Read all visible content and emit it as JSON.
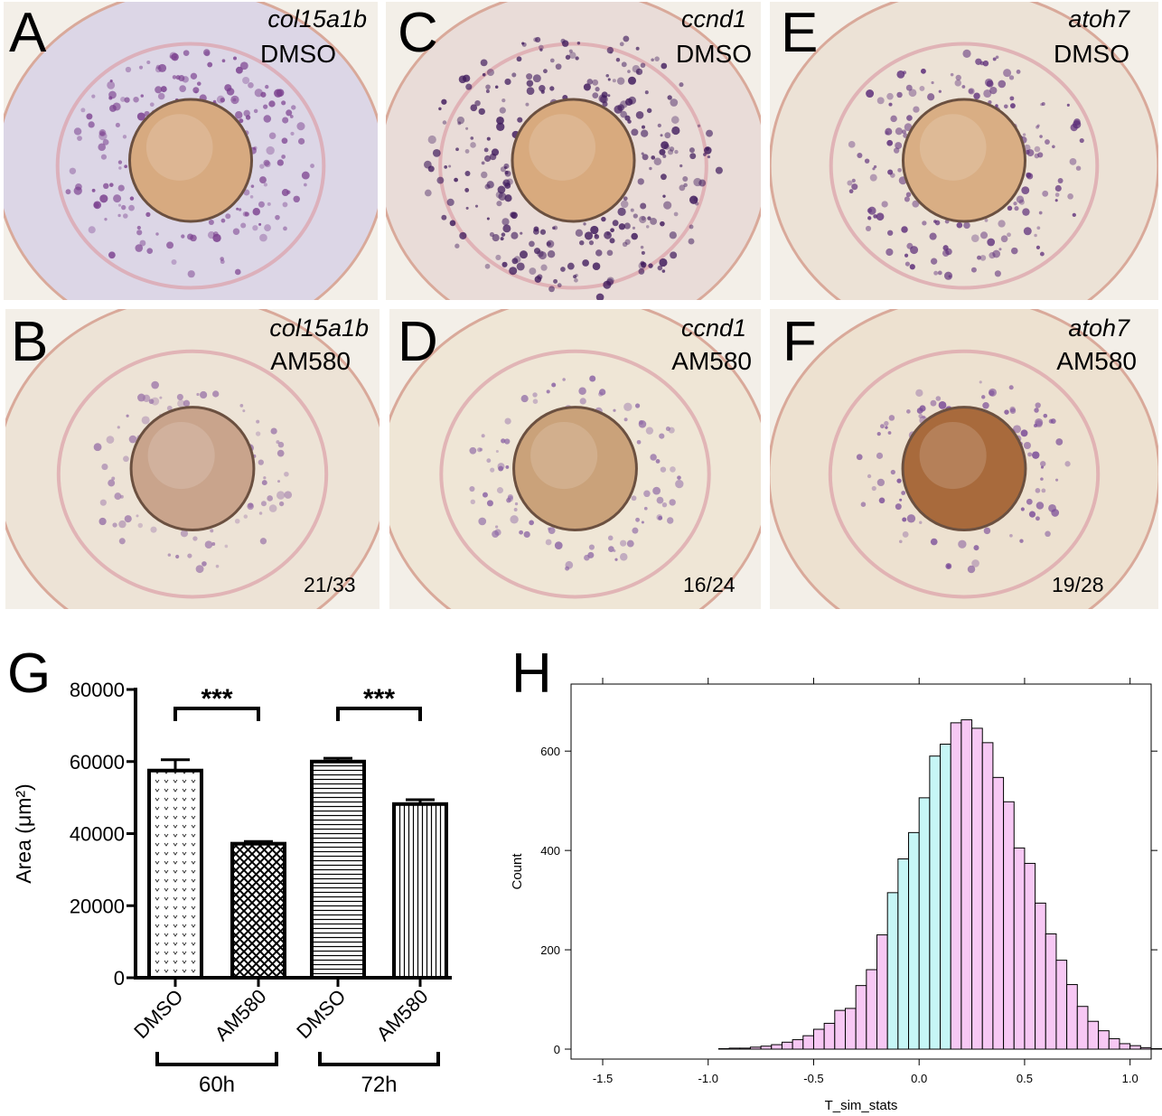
{
  "panels": [
    {
      "letter": "A",
      "gene": "col15a1b",
      "condition": "DMSO",
      "ratio": "",
      "tint": "#dcd6e6",
      "ring": "#7a3f8e",
      "lens": "#d7aa80",
      "dense": 0.55
    },
    {
      "letter": "B",
      "gene": "col15a1b",
      "condition": "AM580",
      "ratio": "21/33",
      "tint": "#ede3d6",
      "ring": "#9a74a8",
      "lens": "#c9a48c",
      "dense": 0.15
    },
    {
      "letter": "C",
      "gene": "ccnd1",
      "condition": "DMSO",
      "ratio": "",
      "tint": "#e9dcd8",
      "ring": "#3f1a5c",
      "lens": "#d8aa7e",
      "dense": 0.95
    },
    {
      "letter": "D",
      "gene": "ccnd1",
      "condition": "AM580",
      "ratio": "16/24",
      "tint": "#efe6d6",
      "ring": "#8a63a4",
      "lens": "#caa27a",
      "dense": 0.2
    },
    {
      "letter": "E",
      "gene": "atoh7",
      "condition": "DMSO",
      "ratio": "",
      "tint": "#ece2d6",
      "ring": "#5a2a78",
      "lens": "#d9ae84",
      "dense": 0.5
    },
    {
      "letter": "F",
      "gene": "atoh7",
      "condition": "AM580",
      "ratio": "19/28",
      "tint": "#ede1d0",
      "ring": "#7a4c98",
      "lens": "#a86a3c",
      "dense": 0.18
    }
  ],
  "chart_data": [
    {
      "panel": "G",
      "type": "bar",
      "ylabel": "Area (μm²)",
      "ylim": [
        0,
        80000
      ],
      "yticks": [
        0,
        20000,
        40000,
        60000,
        80000
      ],
      "categories": [
        "DMSO",
        "AM580",
        "DMSO",
        "AM580"
      ],
      "values": [
        57500,
        37200,
        60000,
        48200
      ],
      "errors": [
        3000,
        600,
        900,
        1200
      ],
      "patterns": [
        "dots",
        "crosshatch",
        "horizontal",
        "vertical"
      ],
      "groups": [
        {
          "label": "60h",
          "members": [
            0,
            1
          ]
        },
        {
          "label": "72h",
          "members": [
            2,
            3
          ]
        }
      ],
      "significance": [
        {
          "label": "***",
          "between": [
            0,
            1
          ]
        },
        {
          "label": "***",
          "between": [
            2,
            3
          ]
        }
      ]
    },
    {
      "panel": "H",
      "type": "bar",
      "subtype": "histogram",
      "xlabel": "T_sim_stats",
      "ylabel": "Count",
      "xlim": [
        -1.65,
        1.1
      ],
      "ylim": [
        -20,
        735
      ],
      "xticks": [
        -1.5,
        -1.0,
        -0.5,
        0.0,
        0.5,
        1.0
      ],
      "xtick_labels": [
        "-1.5",
        "-1.0",
        "-0.5",
        "0.0",
        "0.5",
        "1.0"
      ],
      "yticks": [
        0,
        200,
        400,
        600
      ],
      "bin_start": -1.6,
      "bin_width": 0.05,
      "counts": [
        0,
        0,
        0,
        0,
        0,
        0,
        0,
        0,
        0,
        0,
        0,
        0,
        0,
        1,
        2,
        2,
        4,
        6,
        9,
        14,
        19,
        27,
        40,
        52,
        78,
        82,
        128,
        160,
        230,
        315,
        383,
        436,
        506,
        590,
        614,
        657,
        663,
        646,
        617,
        547,
        498,
        405,
        374,
        294,
        232,
        179,
        130,
        86,
        56,
        37,
        21,
        11,
        7,
        3,
        1,
        1,
        0
      ],
      "highlight_range": [
        -0.15,
        0.15
      ],
      "colors": {
        "main": "#f7c8f4",
        "highlight": "#c6f6f6"
      }
    }
  ]
}
